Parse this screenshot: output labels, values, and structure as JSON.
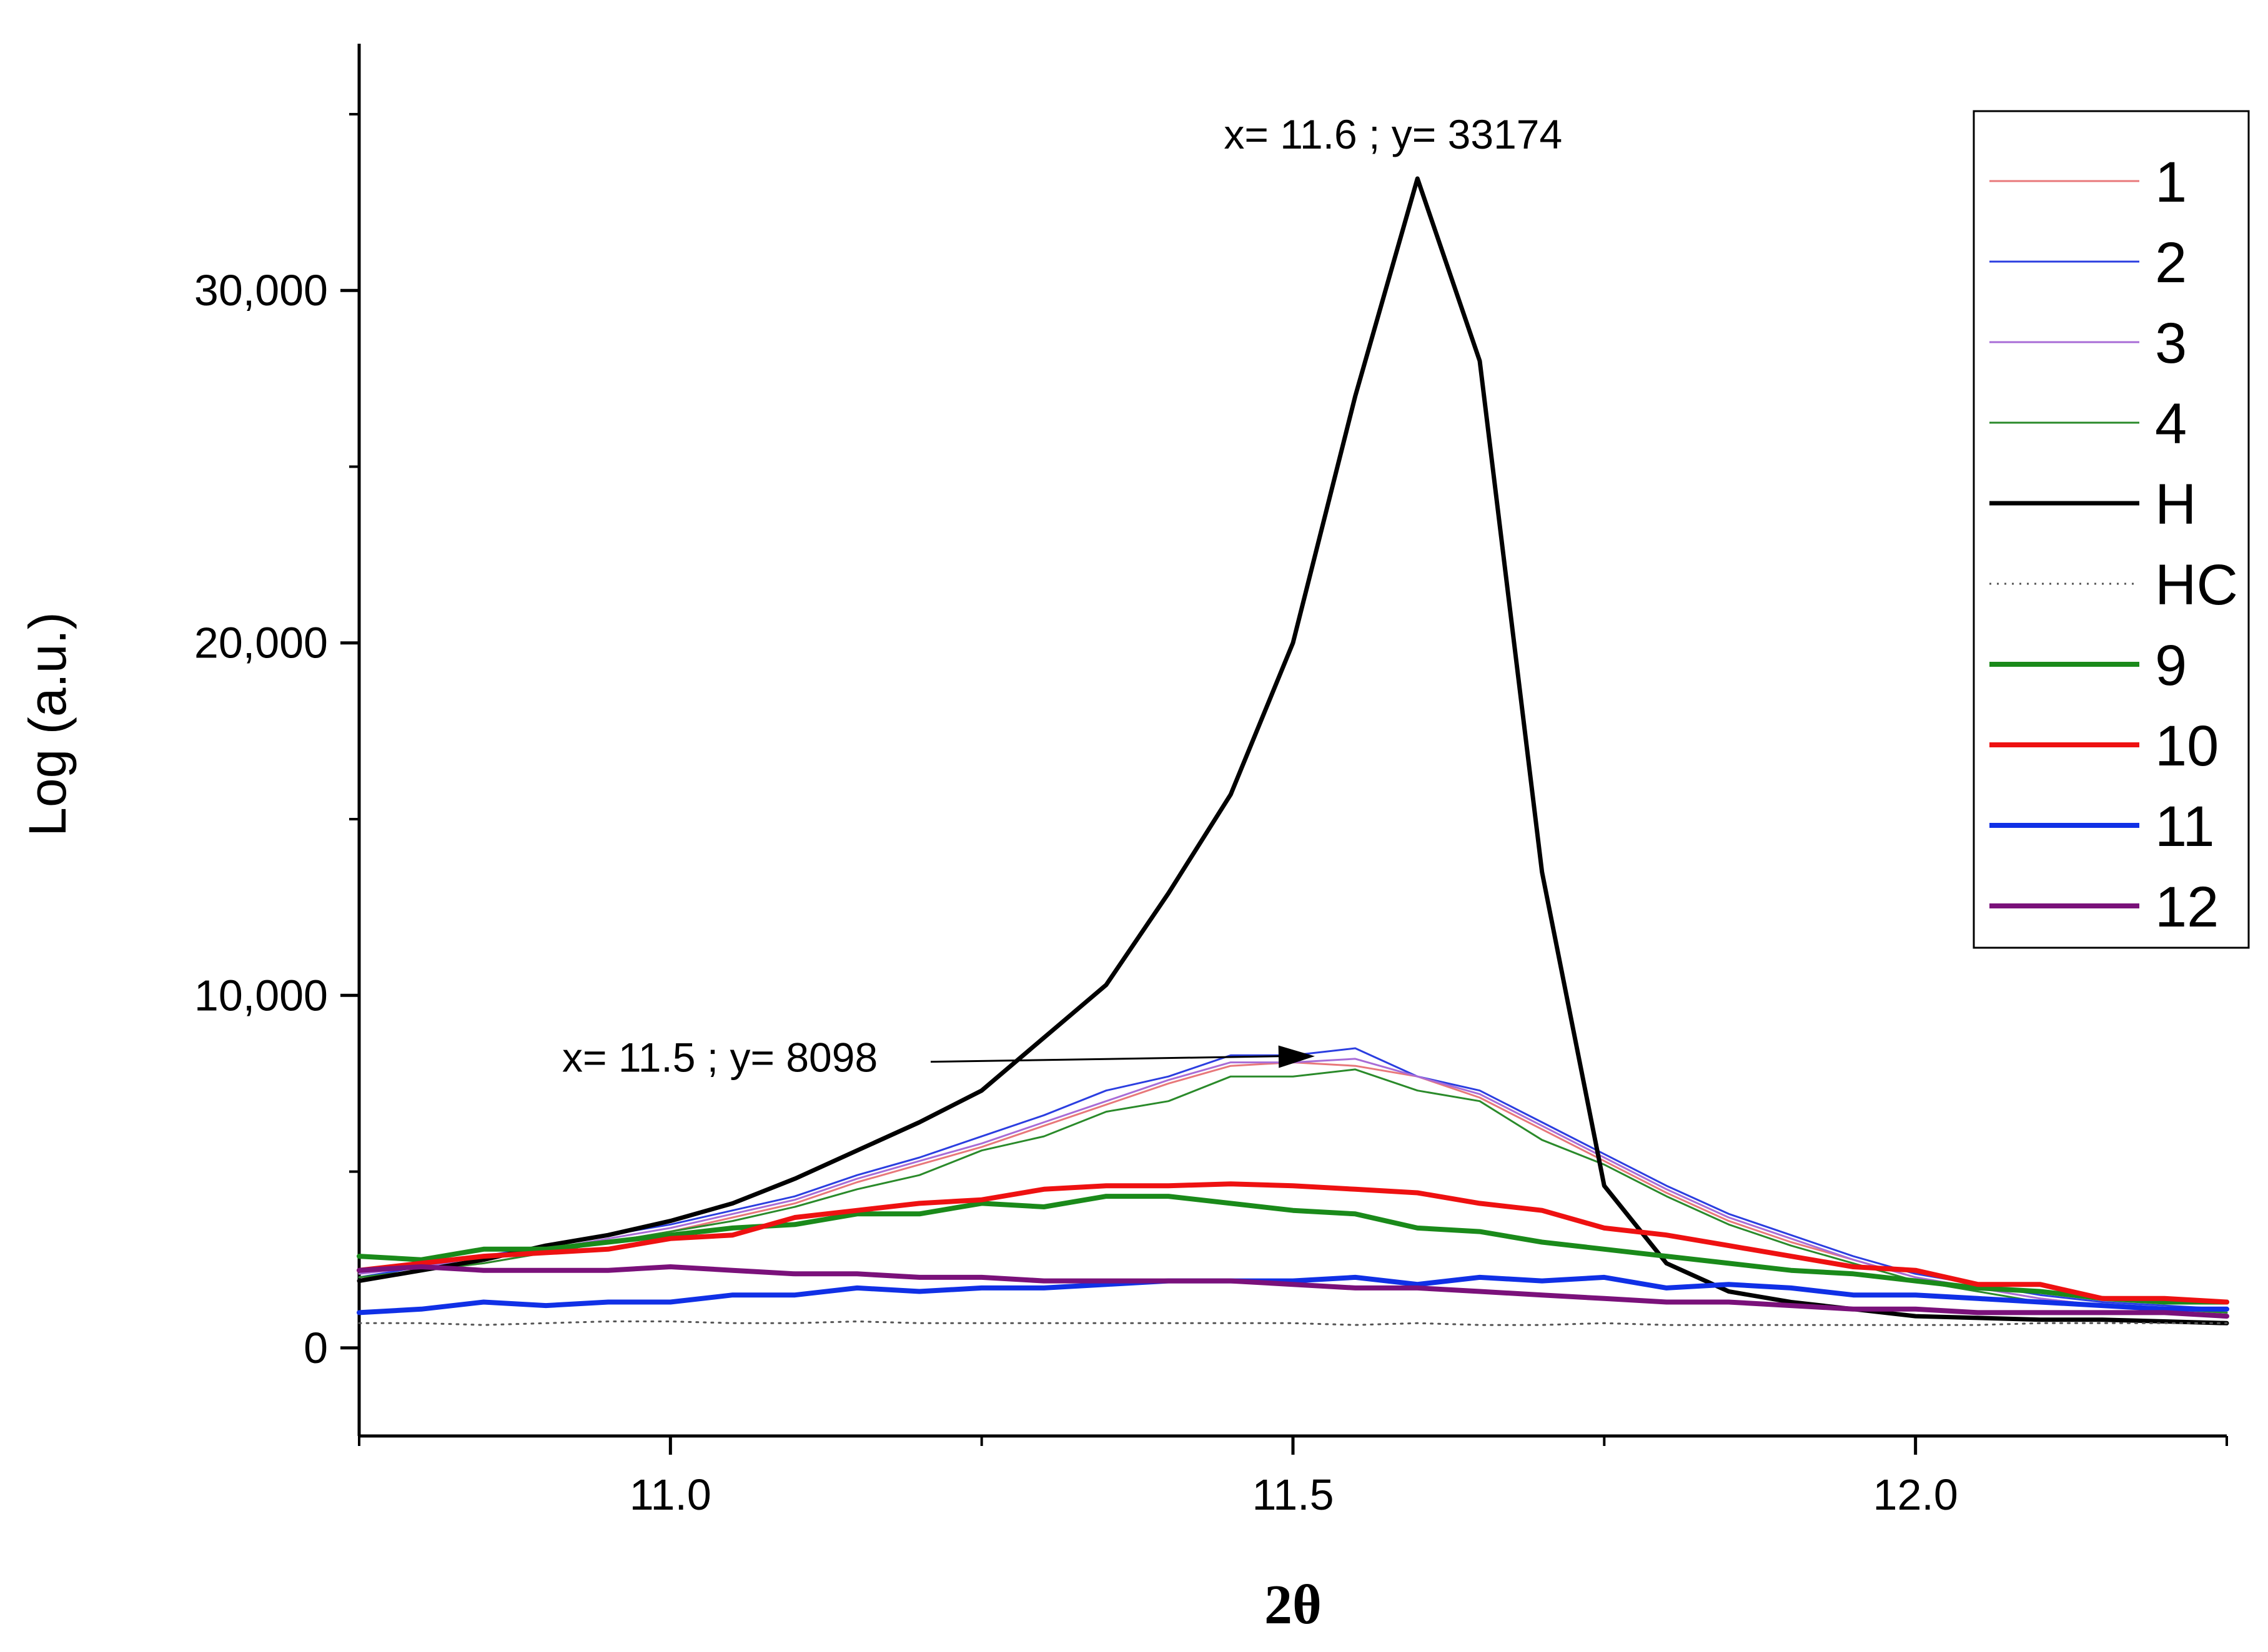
{
  "chart_data": {
    "type": "line",
    "title": "",
    "xlabel": "2θ",
    "ylabel": "Log (a.u.)",
    "xlim": [
      10.75,
      12.25
    ],
    "ylim": [
      -2500,
      37000
    ],
    "x_ticks": [
      11.0,
      11.5,
      12.0
    ],
    "x_tick_labels": [
      "11.0",
      "11.5",
      "12.0"
    ],
    "y_ticks": [
      0,
      10000,
      20000,
      30000
    ],
    "y_tick_labels": [
      "0",
      "10,000",
      "20,000",
      "30,000"
    ],
    "x_minor_ticks": [
      10.75,
      11.25,
      11.75,
      12.25
    ],
    "y_minor_ticks": [
      5000,
      15000,
      25000,
      35000
    ],
    "grid": false,
    "legend_position": "top-right",
    "x": [
      10.75,
      10.8,
      10.85,
      10.9,
      10.95,
      11.0,
      11.05,
      11.1,
      11.15,
      11.2,
      11.25,
      11.3,
      11.35,
      11.4,
      11.45,
      11.5,
      11.55,
      11.6,
      11.65,
      11.7,
      11.75,
      11.8,
      11.85,
      11.9,
      11.95,
      12.0,
      12.05,
      12.1,
      12.15,
      12.2,
      12.25
    ],
    "series": [
      {
        "name": "1",
        "color": "#e8787a",
        "width": 3,
        "dash": "",
        "values": [
          2000,
          2200,
          2400,
          2700,
          3000,
          3300,
          3700,
          4100,
          4700,
          5200,
          5700,
          6300,
          6900,
          7500,
          8000,
          8100,
          8000,
          7700,
          7100,
          6200,
          5300,
          4400,
          3600,
          3000,
          2500,
          2000,
          1700,
          1400,
          1200,
          1100,
          1000
        ]
      },
      {
        "name": "2",
        "color": "#2b3ee0",
        "width": 3,
        "dash": "",
        "values": [
          2000,
          2300,
          2600,
          2900,
          3200,
          3500,
          3900,
          4300,
          4900,
          5400,
          6000,
          6600,
          7300,
          7700,
          8300,
          8300,
          8500,
          7700,
          7300,
          6400,
          5500,
          4600,
          3800,
          3200,
          2600,
          2100,
          1800,
          1500,
          1300,
          1200,
          1100
        ]
      },
      {
        "name": "3",
        "color": "#a86cd6",
        "width": 3,
        "dash": "",
        "values": [
          2100,
          2300,
          2500,
          2800,
          3100,
          3400,
          3800,
          4200,
          4800,
          5300,
          5800,
          6400,
          7000,
          7600,
          8100,
          8100,
          8200,
          7700,
          7200,
          6300,
          5400,
          4500,
          3700,
          3100,
          2500,
          2000,
          1700,
          1400,
          1200,
          1100,
          1000
        ]
      },
      {
        "name": "4",
        "color": "#2a8a2a",
        "width": 3,
        "dash": "",
        "values": [
          2000,
          2200,
          2400,
          2700,
          3000,
          3300,
          3600,
          4000,
          4500,
          4900,
          5600,
          6000,
          6700,
          7000,
          7700,
          7700,
          7900,
          7300,
          7000,
          5900,
          5200,
          4300,
          3500,
          2900,
          2400,
          1900,
          1600,
          1300,
          1200,
          1100,
          1000
        ]
      },
      {
        "name": "H",
        "color": "#000000",
        "width": 7,
        "dash": "",
        "values": [
          1900,
          2200,
          2500,
          2900,
          3200,
          3600,
          4100,
          4800,
          5600,
          6400,
          7300,
          8800,
          10300,
          12900,
          15700,
          20000,
          27000,
          33174,
          28000,
          13500,
          4600,
          2400,
          1600,
          1300,
          1100,
          900,
          850,
          800,
          800,
          750,
          700
        ]
      },
      {
        "name": "HC",
        "color": "#555555",
        "width": 3,
        "dash": "3,9",
        "values": [
          700,
          700,
          650,
          700,
          750,
          750,
          700,
          700,
          750,
          700,
          700,
          700,
          700,
          700,
          700,
          700,
          650,
          700,
          650,
          650,
          700,
          650,
          650,
          650,
          650,
          650,
          650,
          700,
          700,
          700,
          700
        ]
      },
      {
        "name": "9",
        "color": "#1a8a1a",
        "width": 8,
        "dash": "",
        "values": [
          2600,
          2500,
          2800,
          2800,
          3000,
          3200,
          3400,
          3500,
          3800,
          3800,
          4100,
          4000,
          4300,
          4300,
          4100,
          3900,
          3800,
          3400,
          3300,
          3000,
          2800,
          2600,
          2400,
          2200,
          2100,
          1900,
          1700,
          1600,
          1400,
          1300,
          1300
        ]
      },
      {
        "name": "10",
        "color": "#ee1111",
        "width": 8,
        "dash": "",
        "values": [
          2200,
          2400,
          2600,
          2700,
          2800,
          3100,
          3200,
          3700,
          3900,
          4100,
          4200,
          4500,
          4600,
          4600,
          4650,
          4600,
          4500,
          4400,
          4100,
          3900,
          3400,
          3200,
          2900,
          2600,
          2300,
          2200,
          1800,
          1800,
          1400,
          1400,
          1300
        ]
      },
      {
        "name": "11",
        "color": "#1030e6",
        "width": 8,
        "dash": "",
        "values": [
          1000,
          1100,
          1300,
          1200,
          1300,
          1300,
          1500,
          1500,
          1700,
          1600,
          1700,
          1700,
          1800,
          1900,
          1900,
          1900,
          2000,
          1800,
          2000,
          1900,
          2000,
          1700,
          1800,
          1700,
          1500,
          1500,
          1400,
          1300,
          1200,
          1100,
          1100
        ]
      },
      {
        "name": "12",
        "color": "#7a117a",
        "width": 8,
        "dash": "",
        "values": [
          2200,
          2300,
          2200,
          2200,
          2200,
          2300,
          2200,
          2100,
          2100,
          2000,
          2000,
          1900,
          1900,
          1900,
          1900,
          1800,
          1700,
          1700,
          1600,
          1500,
          1400,
          1300,
          1300,
          1200,
          1100,
          1100,
          1000,
          1000,
          1000,
          1000,
          900
        ]
      }
    ],
    "annotations": [
      {
        "text": "x= 11.6  ; y= 33174",
        "x": 11.6,
        "y": 33174
      },
      {
        "text": "x= 11.5 ; y= 8098",
        "x": 11.5,
        "y": 8098,
        "arrow": true
      }
    ]
  }
}
